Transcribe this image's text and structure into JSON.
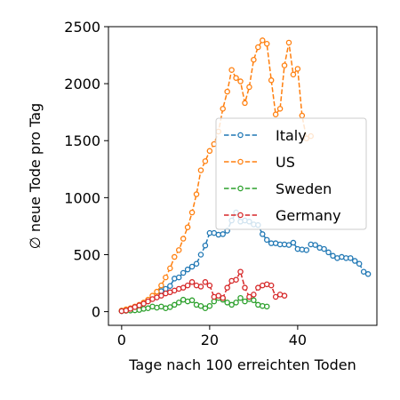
{
  "chart_data": {
    "type": "line",
    "xlabel": "Tage nach 100 erreichten Toden",
    "ylabel": "∅ neue Tode pro Tag",
    "xlim": [
      -3,
      58
    ],
    "ylim": [
      -120,
      2500
    ],
    "xticks": [
      0,
      20,
      40
    ],
    "yticks": [
      0,
      500,
      1000,
      1500,
      2000,
      2500
    ],
    "grid": false,
    "legend_position": "center-right",
    "series": [
      {
        "name": "Italy",
        "color": "#1f77b4",
        "x": [
          0,
          1,
          2,
          3,
          4,
          5,
          6,
          7,
          8,
          9,
          10,
          11,
          12,
          13,
          14,
          15,
          16,
          17,
          18,
          19,
          20,
          21,
          22,
          23,
          24,
          25,
          26,
          27,
          28,
          29,
          30,
          31,
          32,
          33,
          34,
          35,
          36,
          37,
          38,
          39,
          40,
          41,
          42,
          43,
          44,
          45,
          46,
          47,
          48,
          49,
          50,
          51,
          52,
          53,
          54,
          55,
          56
        ],
        "y": [
          5,
          15,
          25,
          40,
          55,
          75,
          95,
          120,
          150,
          180,
          200,
          225,
          290,
          300,
          340,
          370,
          395,
          420,
          500,
          580,
          690,
          690,
          675,
          680,
          710,
          800,
          870,
          790,
          800,
          790,
          765,
          760,
          680,
          630,
          600,
          600,
          590,
          590,
          585,
          605,
          550,
          545,
          540,
          590,
          585,
          560,
          550,
          520,
          490,
          470,
          480,
          470,
          470,
          445,
          420,
          350,
          330
        ]
      },
      {
        "name": "US",
        "color": "#ff7f0e",
        "x": [
          0,
          1,
          2,
          3,
          4,
          5,
          6,
          7,
          8,
          9,
          10,
          11,
          12,
          13,
          14,
          15,
          16,
          17,
          18,
          19,
          20,
          21,
          22,
          23,
          24,
          25,
          26,
          27,
          28,
          29,
          30,
          31,
          32,
          33,
          34,
          35,
          36,
          37,
          38,
          39,
          40,
          41,
          42,
          43
        ],
        "y": [
          10,
          20,
          30,
          45,
          60,
          80,
          105,
          140,
          175,
          230,
          300,
          380,
          480,
          540,
          640,
          740,
          870,
          1030,
          1240,
          1320,
          1410,
          1470,
          1580,
          1780,
          1930,
          2120,
          2050,
          2020,
          1830,
          1970,
          2210,
          2320,
          2380,
          2350,
          2030,
          1730,
          1780,
          2160,
          2360,
          2080,
          2130,
          1720,
          1520,
          1540
        ]
      },
      {
        "name": "Sweden",
        "color": "#2ca02c",
        "x": [
          0,
          1,
          2,
          3,
          4,
          5,
          6,
          7,
          8,
          9,
          10,
          11,
          12,
          13,
          14,
          15,
          16,
          17,
          18,
          19,
          20,
          21,
          22,
          23,
          24,
          25,
          26,
          27,
          28,
          29,
          30,
          31,
          32,
          33
        ],
        "y": [
          5,
          8,
          10,
          12,
          15,
          25,
          30,
          45,
          35,
          45,
          30,
          40,
          60,
          80,
          105,
          90,
          100,
          60,
          50,
          30,
          50,
          90,
          120,
          105,
          80,
          60,
          80,
          120,
          90,
          110,
          100,
          60,
          50,
          45
        ]
      },
      {
        "name": "Germany",
        "color": "#d62728",
        "x": [
          0,
          1,
          2,
          3,
          4,
          5,
          6,
          7,
          8,
          9,
          10,
          11,
          12,
          13,
          14,
          15,
          16,
          17,
          18,
          19,
          20,
          21,
          22,
          23,
          24,
          25,
          26,
          27,
          28,
          29,
          30,
          31,
          32,
          33,
          34,
          35,
          36,
          37
        ],
        "y": [
          5,
          10,
          25,
          40,
          55,
          70,
          90,
          110,
          125,
          140,
          160,
          170,
          185,
          200,
          210,
          230,
          260,
          230,
          220,
          260,
          230,
          130,
          140,
          120,
          210,
          270,
          280,
          350,
          210,
          130,
          150,
          210,
          230,
          240,
          230,
          130,
          150,
          140
        ]
      }
    ]
  }
}
